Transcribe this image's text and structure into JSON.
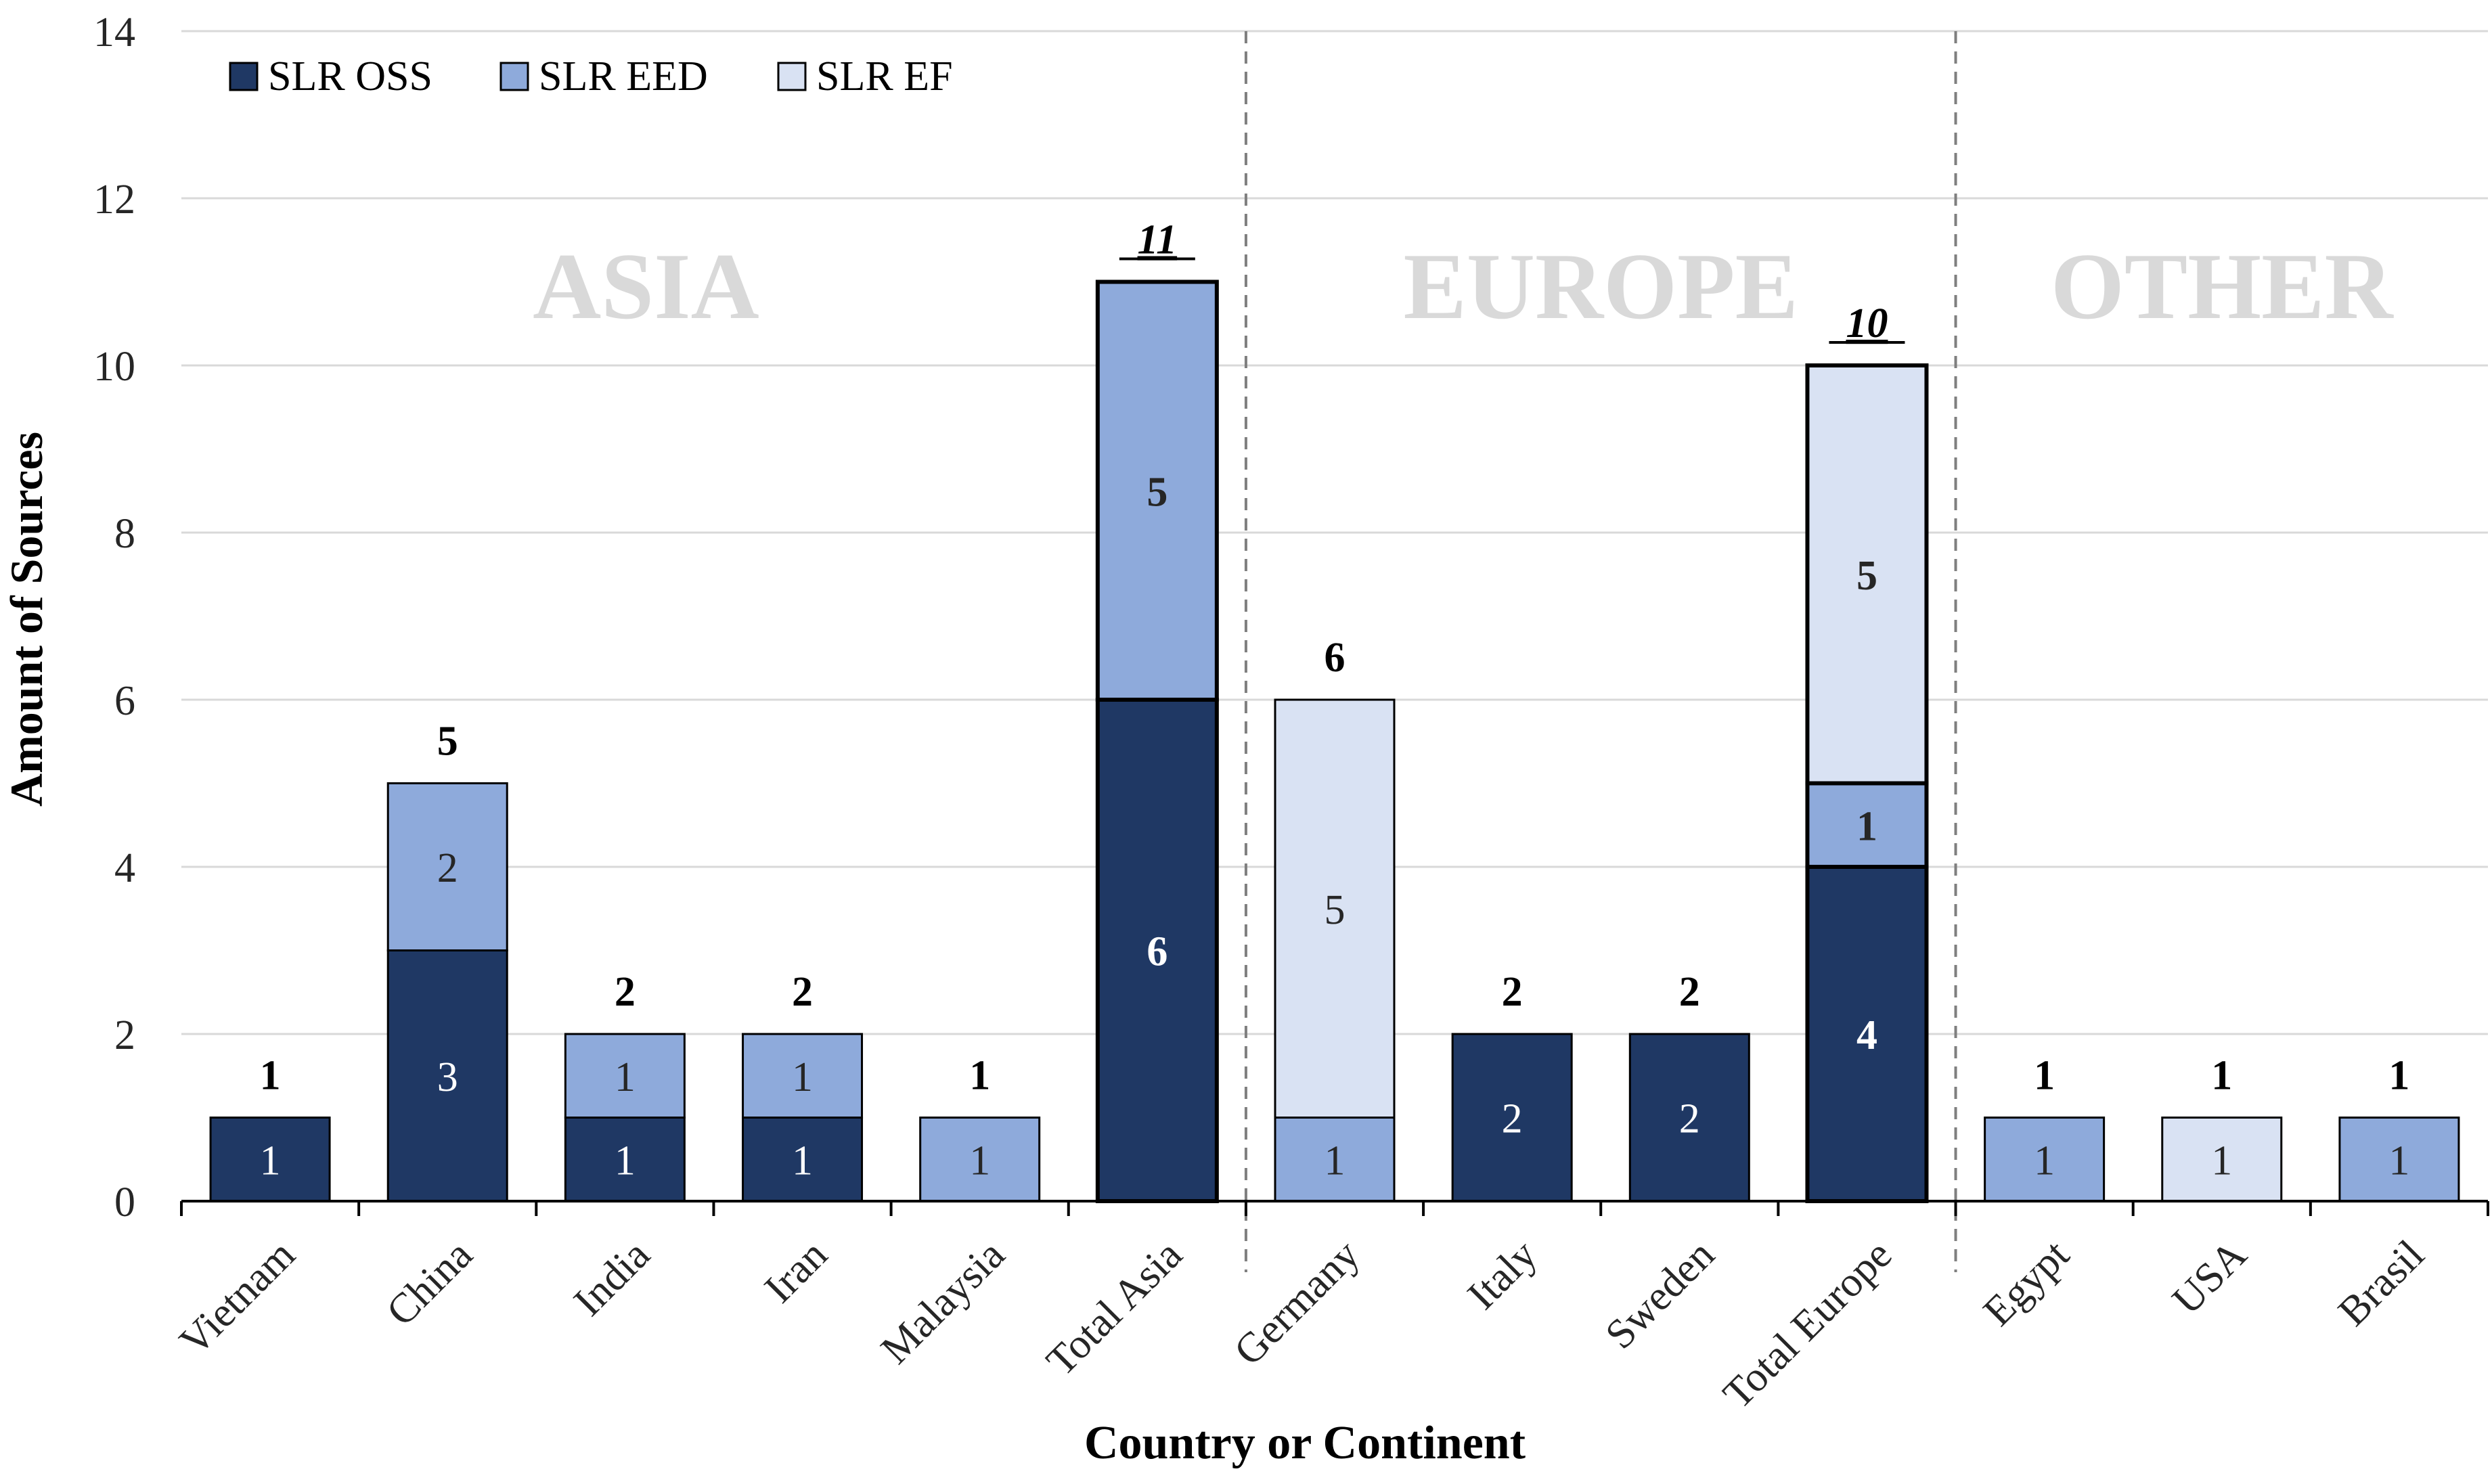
{
  "chart_data": {
    "type": "bar",
    "stacked": true,
    "title": "",
    "xlabel": "Country or Continent",
    "ylabel": "Amount of Sources",
    "ylim": [
      0,
      14
    ],
    "yticks": [
      0,
      2,
      4,
      6,
      8,
      10,
      12,
      14
    ],
    "yticklabels": [
      "0",
      "2",
      "4",
      "6",
      "8",
      "10",
      "12",
      "14"
    ],
    "grid": true,
    "legend_position": "top-left",
    "categories": [
      "Vietnam",
      "China",
      "India",
      "Iran",
      "Malaysia",
      "Total Asia",
      "Germany",
      "Italy",
      "Sweden",
      "Total Europe",
      "Egypt",
      "USA",
      "Brasil"
    ],
    "series": [
      {
        "name": "SLR OSS",
        "color": "#1f3864",
        "label_color": "#ffffff",
        "values": [
          1,
          3,
          1,
          1,
          0,
          6,
          0,
          2,
          2,
          4,
          0,
          0,
          0
        ]
      },
      {
        "name": "SLR EED",
        "color": "#8eaadb",
        "label_color": "#262626",
        "values": [
          0,
          2,
          1,
          1,
          1,
          5,
          1,
          0,
          0,
          1,
          1,
          0,
          1
        ]
      },
      {
        "name": "SLR EF",
        "color": "#d9e2f3",
        "label_color": "#262626",
        "values": [
          0,
          0,
          0,
          0,
          0,
          0,
          5,
          0,
          0,
          5,
          0,
          1,
          0
        ]
      }
    ],
    "segment_labels": [
      [
        "1",
        "",
        ""
      ],
      [
        "3",
        "2",
        ""
      ],
      [
        "1",
        "1",
        ""
      ],
      [
        "1",
        "1",
        ""
      ],
      [
        "",
        "1",
        ""
      ],
      [
        "6",
        "5",
        ""
      ],
      [
        "",
        "1",
        "5"
      ],
      [
        "2",
        "",
        ""
      ],
      [
        "2",
        "",
        ""
      ],
      [
        "4",
        "1",
        "5"
      ],
      [
        "",
        "1",
        ""
      ],
      [
        "",
        "",
        "1"
      ],
      [
        "",
        "1",
        ""
      ]
    ],
    "totals": [
      1,
      5,
      2,
      2,
      1,
      11,
      6,
      2,
      2,
      10,
      1,
      1,
      1
    ],
    "total_labels": [
      "1",
      "5",
      "2",
      "2",
      "1",
      "11",
      "6",
      "2",
      "2",
      "10",
      "1",
      "1",
      "1"
    ],
    "emphasized_totals": [
      "Total Asia",
      "Total Europe"
    ],
    "regions": [
      {
        "label": "ASIA",
        "categories": [
          "Vietnam",
          "China",
          "India",
          "Iran",
          "Malaysia",
          "Total Asia"
        ]
      },
      {
        "label": "EUROPE",
        "categories": [
          "Germany",
          "Italy",
          "Sweden",
          "Total Europe"
        ]
      },
      {
        "label": "OTHER",
        "categories": [
          "Egypt",
          "USA",
          "Brasil"
        ]
      }
    ]
  }
}
